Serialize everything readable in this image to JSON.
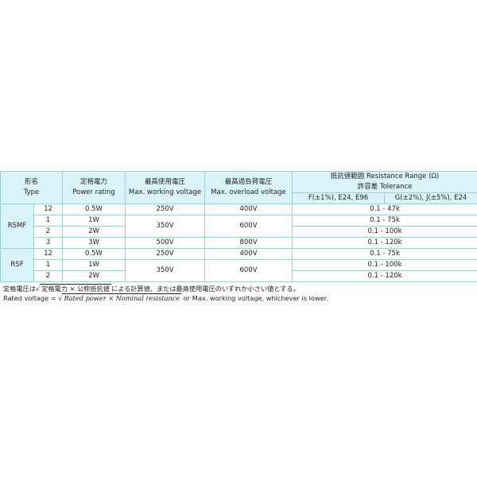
{
  "header": {
    "type_jp": "形名",
    "type_en": "Type",
    "power_jp": "定格電力",
    "power_en": "Power rating",
    "working_jp": "最高使用電圧",
    "working_en": "Max. working voltage",
    "overload_jp": "最高過負荷電圧",
    "overload_en": "Max. overload voltage",
    "range_title": "抵抗値範囲 Resistance Range (Ω)",
    "tolerance": "許容差 Tolerance",
    "tol_f": "F(±1%), E24, E96",
    "tol_gj": "G(±2%), J(±5%), E24"
  },
  "groups": [
    {
      "type": "RSMF",
      "rows": [
        {
          "sub": "12",
          "power": "0.5W",
          "working": "250V",
          "overload": "400V",
          "range": "0.1 - 47k"
        },
        {
          "sub": "1",
          "power": "1W",
          "working": "350V",
          "overload": "600V",
          "range": "0.1 - 75k"
        },
        {
          "sub": "2",
          "power": "2W",
          "range": "0.1 - 100k"
        },
        {
          "sub": "3",
          "power": "3W",
          "working": "500V",
          "overload": "800V",
          "range": "0.1 - 120k"
        }
      ]
    },
    {
      "type": "RSF",
      "rows": [
        {
          "sub": "12",
          "power": "0.5W",
          "working": "250V",
          "overload": "400V",
          "range": "0.1 - 75k"
        },
        {
          "sub": "1",
          "power": "1W",
          "working": "350V",
          "overload": "600V",
          "range": "0.1 - 100k"
        },
        {
          "sub": "2",
          "power": "2W",
          "range": "0.1 - 120k"
        }
      ]
    }
  ],
  "notes": {
    "jp_a": "定格電圧は√",
    "jp_rad": "定格電力 × 公称抵抗値",
    "jp_b": "による計算値、または最高使用電圧のいずれか小さい値とする。",
    "en_a": "Rated voltage = √",
    "en_rad": "Rated power × Nominal resistance",
    "en_b": " or Max. working voltage, whichever is lower."
  }
}
